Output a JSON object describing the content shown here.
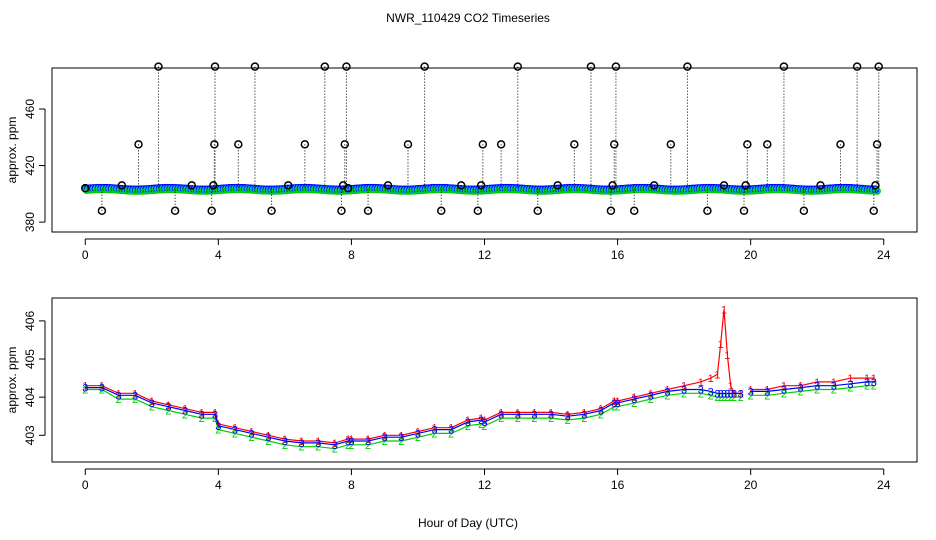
{
  "chart_data": [
    {
      "type": "scatter",
      "panel": "top",
      "title": "NWR_110429  CO2 Timeseries",
      "xlabel": "",
      "ylabel": "approx. ppm",
      "xlim": [
        -1,
        25
      ],
      "ylim": [
        373,
        489
      ],
      "xticks": [
        0,
        4,
        8,
        12,
        16,
        20,
        24
      ],
      "xtick_labels": [
        "0",
        "4",
        "8",
        "12",
        "16",
        "20",
        "24"
      ],
      "yticks": [
        380,
        420,
        460
      ],
      "ytick_labels": [
        "380",
        "420",
        "460"
      ],
      "baseline_ppm": 403.5,
      "baseline_series": [
        {
          "name": "blue circles",
          "color": "#0000ff"
        },
        {
          "name": "cyan markers",
          "color": "#00bfff"
        },
        {
          "name": "green markers",
          "color": "#00cd00"
        }
      ],
      "outlier_series": {
        "name": "flagged outliers (black circles with dotted drop lines)",
        "color": "#000000",
        "x": [
          0.0,
          0.5,
          1.1,
          1.6,
          2.2,
          2.7,
          3.2,
          3.8,
          3.85,
          3.88,
          3.9,
          4.6,
          5.1,
          5.6,
          6.1,
          6.6,
          7.2,
          7.7,
          7.75,
          7.8,
          7.85,
          7.9,
          8.5,
          9.1,
          9.7,
          10.2,
          10.7,
          11.3,
          11.8,
          11.9,
          11.95,
          12.5,
          13.0,
          13.6,
          14.2,
          14.7,
          15.2,
          15.8,
          15.85,
          15.9,
          15.95,
          16.5,
          17.1,
          17.6,
          18.1,
          18.7,
          19.2,
          19.8,
          19.85,
          19.9,
          20.5,
          21.0,
          21.6,
          22.1,
          22.7,
          23.2,
          23.7,
          23.75,
          23.8,
          23.85
        ],
        "y": [
          404,
          388,
          406,
          435,
          490,
          388,
          406,
          388,
          406,
          435,
          490,
          435,
          490,
          388,
          406,
          435,
          490,
          388,
          406,
          435,
          490,
          404,
          388,
          406,
          435,
          490,
          388,
          406,
          388,
          406,
          435,
          435,
          490,
          388,
          406,
          435,
          490,
          388,
          406,
          435,
          490,
          388,
          406,
          435,
          490,
          388,
          406,
          388,
          406,
          435,
          435,
          490,
          388,
          406,
          435,
          490,
          388,
          406,
          435,
          490
        ]
      }
    },
    {
      "type": "line",
      "panel": "bottom",
      "title": "",
      "xlabel": "Hour of Day (UTC)",
      "ylabel": "approx. ppm",
      "xlim": [
        -1,
        25
      ],
      "ylim": [
        402.3,
        406.6
      ],
      "xticks": [
        0,
        4,
        8,
        12,
        16,
        20,
        24
      ],
      "xtick_labels": [
        "0",
        "4",
        "8",
        "12",
        "16",
        "20",
        "24"
      ],
      "yticks": [
        403,
        404,
        405,
        406
      ],
      "ytick_labels": [
        "403",
        "404",
        "405",
        "406"
      ],
      "gap": [
        19.7,
        20.0
      ],
      "x": [
        0.0,
        0.5,
        1.0,
        1.5,
        2.0,
        2.5,
        3.0,
        3.5,
        3.9,
        4.0,
        4.5,
        5.0,
        5.5,
        6.0,
        6.5,
        7.0,
        7.5,
        7.9,
        8.0,
        8.5,
        9.0,
        9.5,
        10.0,
        10.5,
        11.0,
        11.5,
        11.9,
        12.0,
        12.5,
        13.0,
        13.5,
        14.0,
        14.5,
        15.0,
        15.5,
        15.9,
        16.0,
        16.5,
        17.0,
        17.5,
        18.0,
        18.5,
        18.8,
        19.0,
        19.1,
        19.2,
        19.3,
        19.4,
        19.5,
        19.7,
        20.0,
        20.5,
        21.0,
        21.5,
        22.0,
        22.5,
        23.0,
        23.5,
        23.7
      ],
      "series": [
        {
          "name": "1",
          "color": "#ff0000",
          "symbol": "1",
          "values": [
            404.3,
            404.3,
            404.1,
            404.1,
            403.9,
            403.8,
            403.7,
            403.6,
            403.6,
            403.3,
            403.2,
            403.1,
            403.0,
            402.9,
            402.85,
            402.85,
            402.8,
            402.9,
            402.9,
            402.9,
            403.0,
            403.0,
            403.1,
            403.2,
            403.2,
            403.4,
            403.45,
            403.4,
            403.6,
            403.6,
            403.6,
            403.6,
            403.55,
            403.6,
            403.7,
            403.9,
            403.9,
            404.0,
            404.1,
            404.2,
            404.3,
            404.4,
            404.5,
            404.6,
            405.4,
            406.3,
            405.1,
            404.3,
            404.1,
            404.1,
            404.2,
            404.2,
            404.3,
            404.3,
            404.4,
            404.4,
            404.5,
            404.5,
            404.5
          ]
        },
        {
          "name": "2",
          "color": "#00cd00",
          "symbol": "2",
          "values": [
            404.2,
            404.2,
            403.95,
            403.95,
            403.75,
            403.65,
            403.55,
            403.45,
            403.45,
            403.15,
            403.05,
            402.95,
            402.85,
            402.75,
            402.7,
            402.7,
            402.65,
            402.75,
            402.75,
            402.75,
            402.85,
            402.85,
            402.95,
            403.05,
            403.05,
            403.25,
            403.3,
            403.25,
            403.45,
            403.45,
            403.45,
            403.45,
            403.4,
            403.45,
            403.55,
            403.75,
            403.75,
            403.85,
            403.95,
            404.05,
            404.1,
            404.1,
            404.05,
            404.0,
            404.0,
            404.0,
            404.0,
            404.0,
            404.0,
            404.0,
            404.05,
            404.05,
            404.1,
            404.15,
            404.2,
            404.2,
            404.25,
            404.3,
            404.3
          ]
        },
        {
          "name": "3",
          "color": "#0000ff",
          "symbol": "3",
          "values": [
            404.25,
            404.25,
            404.05,
            404.05,
            403.85,
            403.75,
            403.65,
            403.55,
            403.55,
            403.25,
            403.15,
            403.05,
            402.95,
            402.85,
            402.8,
            402.8,
            402.75,
            402.85,
            402.85,
            402.85,
            402.95,
            402.95,
            403.05,
            403.15,
            403.15,
            403.35,
            403.4,
            403.35,
            403.55,
            403.55,
            403.55,
            403.55,
            403.5,
            403.55,
            403.65,
            403.85,
            403.85,
            403.95,
            404.05,
            404.15,
            404.2,
            404.2,
            404.15,
            404.1,
            404.1,
            404.1,
            404.1,
            404.1,
            404.1,
            404.1,
            404.15,
            404.15,
            404.2,
            404.25,
            404.3,
            404.3,
            404.35,
            404.4,
            404.4
          ]
        }
      ]
    }
  ]
}
